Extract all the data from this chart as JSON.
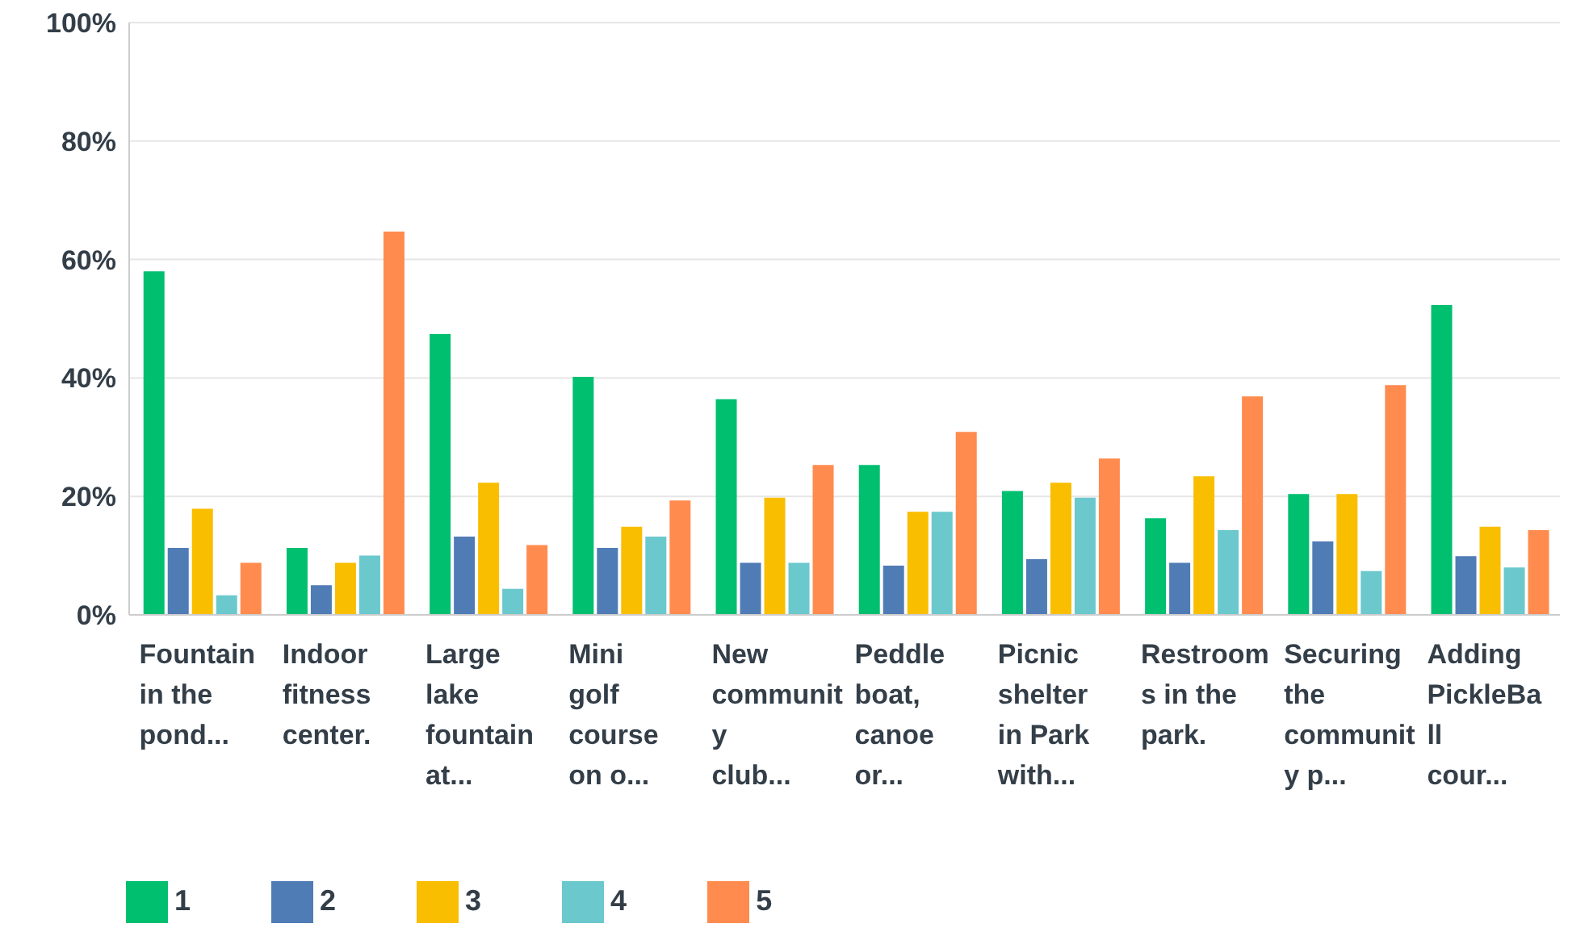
{
  "chart_data": {
    "type": "bar",
    "categories": [
      "Fountain in the pond...",
      "Indoor fitness center.",
      "Large lake fountain at...",
      "Mini golf course on o...",
      "New community club...",
      "Peddle boat, canoe or...",
      "Picnic shelter in Park with...",
      "Restrooms in the park.",
      "Securing the community p...",
      "Adding PickleBall cour..."
    ],
    "series": [
      {
        "name": "1",
        "color": "#00bf6f",
        "values": [
          58,
          11.3,
          47.4,
          40.2,
          36.4,
          25.3,
          20.9,
          16.3,
          20.4,
          52.3
        ]
      },
      {
        "name": "2",
        "color": "#507cb6",
        "values": [
          11.3,
          5,
          13.2,
          11.3,
          8.8,
          8.3,
          9.4,
          8.8,
          12.4,
          9.9
        ]
      },
      {
        "name": "3",
        "color": "#f9be00",
        "values": [
          17.9,
          8.8,
          22.3,
          14.9,
          19.8,
          17.4,
          22.3,
          23.4,
          20.4,
          14.9
        ]
      },
      {
        "name": "4",
        "color": "#6bc8cd",
        "values": [
          3.3,
          10,
          4.4,
          13.2,
          8.8,
          17.4,
          19.8,
          14.3,
          7.4,
          8
        ]
      },
      {
        "name": "5",
        "color": "#ff8b4f",
        "values": [
          8.8,
          64.7,
          11.8,
          19.3,
          25.3,
          30.9,
          26.4,
          36.9,
          38.8,
          14.3
        ]
      }
    ],
    "ylim": [
      0,
      100
    ],
    "yticks": [
      {
        "value": 0,
        "label": "0%"
      },
      {
        "value": 20,
        "label": "20%"
      },
      {
        "value": 40,
        "label": "40%"
      },
      {
        "value": 60,
        "label": "60%"
      },
      {
        "value": 80,
        "label": "80%"
      },
      {
        "value": 100,
        "label": "100%"
      }
    ],
    "grid": "y",
    "legend": "bottom left"
  }
}
